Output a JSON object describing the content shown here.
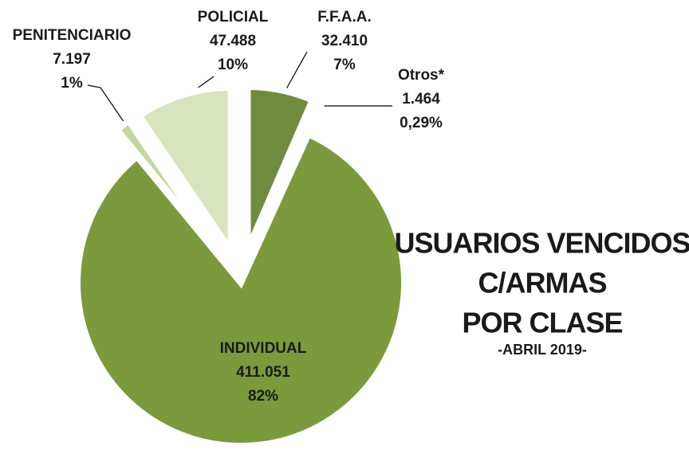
{
  "chart_data": {
    "type": "pie",
    "title": [
      "USUARIOS VENCIDOS",
      "C/ARMAS",
      "POR CLASE"
    ],
    "subtitle": "-ABRIL 2019-",
    "categories": [
      "F.F.A.A.",
      "Otros*",
      "INDIVIDUAL",
      "PENITENCIARIO",
      "POLICIAL"
    ],
    "values": [
      32410,
      1464,
      411051,
      7197,
      47488
    ],
    "value_labels": [
      "32.410",
      "1.464",
      "411.051",
      "7.197",
      "47.488"
    ],
    "percents": [
      7,
      0.29,
      82,
      1,
      10
    ],
    "percent_labels": [
      "7%",
      "0,29%",
      "82%",
      "1%",
      "10%"
    ],
    "colors": [
      "#6f8b3d",
      "#9bbb59",
      "#7a9a3c",
      "#c3d69b",
      "#d7e4bd"
    ]
  }
}
